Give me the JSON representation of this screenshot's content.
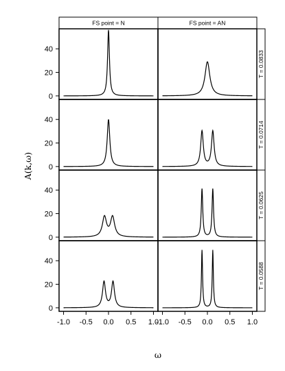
{
  "chart_data": {
    "type": "line",
    "xlabel": "ω",
    "ylabel": "A(k,ω)",
    "xlim": [
      -1.1,
      1.1
    ],
    "ylim": [
      -3,
      57
    ],
    "x_ticks": [
      -1.0,
      -0.5,
      0.0,
      0.5,
      1.0
    ],
    "x_tick_labels": [
      "-1.0",
      "-0.5",
      "0.0",
      "0.5",
      "1.0"
    ],
    "y_ticks": [
      0,
      20,
      40
    ],
    "columns": [
      {
        "label": "FS point = N"
      },
      {
        "label": "FS point = AN"
      }
    ],
    "rows": [
      {
        "label": "T = 0.0833"
      },
      {
        "label": "T = 0.0714"
      },
      {
        "label": "T = 0.0625"
      },
      {
        "label": "T = 0.0588"
      }
    ],
    "panels": [
      {
        "row": 0,
        "col": 0,
        "peaks": [
          {
            "center": 0.0,
            "height": 56,
            "width": 0.025
          }
        ]
      },
      {
        "row": 0,
        "col": 1,
        "peaks": [
          {
            "center": 0.0,
            "height": 29,
            "width": 0.065
          }
        ]
      },
      {
        "row": 1,
        "col": 0,
        "peaks": [
          {
            "center": 0.0,
            "height": 40,
            "width": 0.035
          }
        ]
      },
      {
        "row": 1,
        "col": 1,
        "peaks": [
          {
            "center": -0.12,
            "height": 30,
            "width": 0.035
          },
          {
            "center": 0.12,
            "height": 30,
            "width": 0.035
          }
        ]
      },
      {
        "row": 2,
        "col": 0,
        "peaks": [
          {
            "center": -0.09,
            "height": 17,
            "width": 0.055
          },
          {
            "center": 0.09,
            "height": 17,
            "width": 0.055
          }
        ]
      },
      {
        "row": 2,
        "col": 1,
        "peaks": [
          {
            "center": -0.12,
            "height": 41,
            "width": 0.02
          },
          {
            "center": 0.12,
            "height": 41,
            "width": 0.02
          }
        ]
      },
      {
        "row": 3,
        "col": 0,
        "peaks": [
          {
            "center": -0.1,
            "height": 22,
            "width": 0.04
          },
          {
            "center": 0.1,
            "height": 22,
            "width": 0.04
          }
        ]
      },
      {
        "row": 3,
        "col": 1,
        "peaks": [
          {
            "center": -0.12,
            "height": 49,
            "width": 0.015
          },
          {
            "center": 0.12,
            "height": 49,
            "width": 0.015
          }
        ]
      }
    ]
  }
}
